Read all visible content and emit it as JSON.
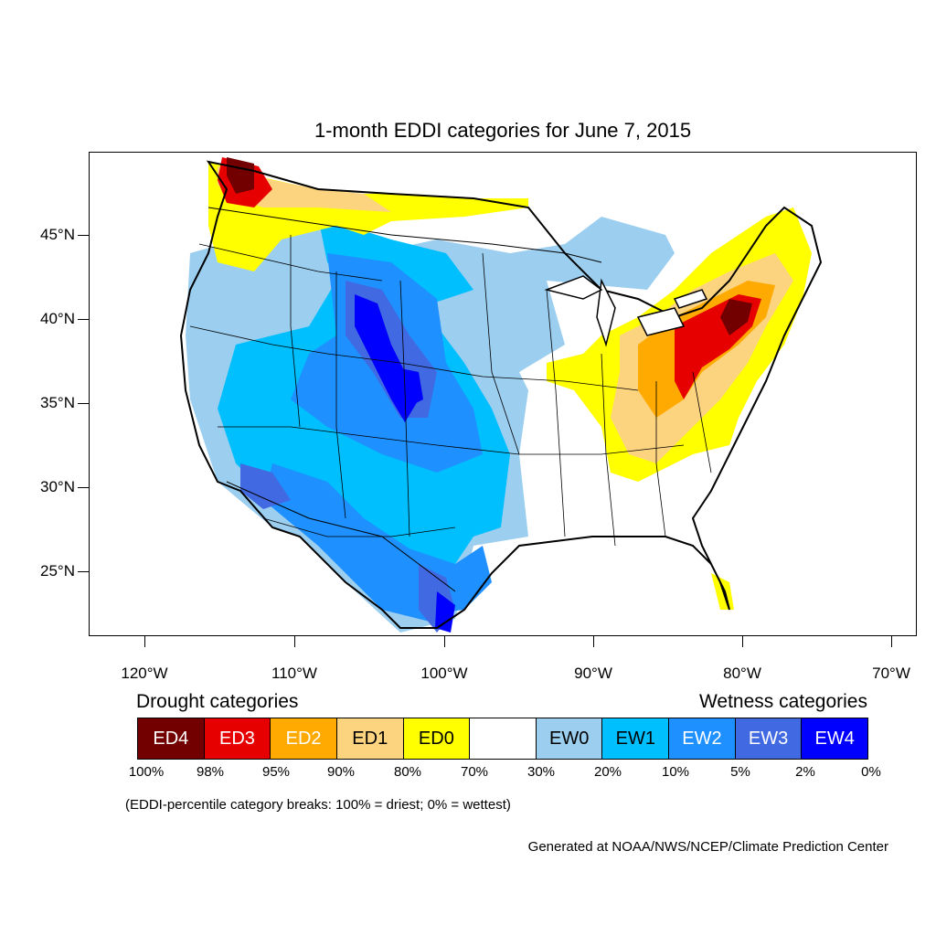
{
  "title": "1-month EDDI categories for June 7, 2015",
  "latitude_labels": [
    "45°N",
    "40°N",
    "35°N",
    "30°N",
    "25°N"
  ],
  "longitude_labels": [
    "120°W",
    "110°W",
    "100°W",
    "90°W",
    "80°W",
    "70°W"
  ],
  "legend": {
    "drought_heading": "Drought categories",
    "wetness_heading": "Wetness categories",
    "categories": [
      {
        "label": "ED4",
        "color": "#730000"
      },
      {
        "label": "ED3",
        "color": "#e60000"
      },
      {
        "label": "ED2",
        "color": "#ffaa00"
      },
      {
        "label": "ED1",
        "color": "#fcd37f"
      },
      {
        "label": "ED0",
        "color": "#ffff00"
      },
      {
        "label": "",
        "color": "#ffffff"
      },
      {
        "label": "EW0",
        "color": "#9ccef0"
      },
      {
        "label": "EW1",
        "color": "#00bfff"
      },
      {
        "label": "EW2",
        "color": "#1e90ff"
      },
      {
        "label": "EW3",
        "color": "#4169e1"
      },
      {
        "label": "EW4",
        "color": "#0000ff"
      }
    ],
    "breaks": [
      "100%",
      "98%",
      "95%",
      "90%",
      "80%",
      "70%",
      "30%",
      "20%",
      "10%",
      "5%",
      "2%",
      "0%"
    ]
  },
  "note": "(EDDI-percentile category breaks: 100% = driest; 0% = wettest)",
  "credit": "Generated at NOAA/NWS/NCEP/Climate Prediction Center"
}
